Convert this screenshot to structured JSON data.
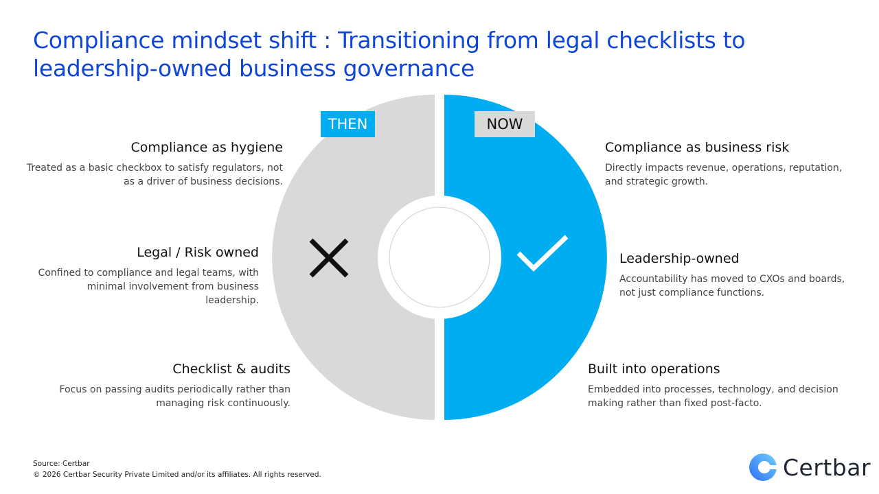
{
  "title": "Compliance mindset shift : Transitioning from legal checklists to leadership-owned business governance",
  "then_label": "THEN",
  "now_label": "NOW",
  "then_items": [
    {
      "heading": "Compliance as hygiene",
      "text": "Treated as a basic checkbox to satisfy regulators, not as a driver of business decisions."
    },
    {
      "heading": "Legal / Risk owned",
      "text": "Confined to compliance and legal teams, with minimal involvement from business leadership."
    },
    {
      "heading": "Checklist & audits",
      "text": "Focus on passing audits periodically rather than managing risk continuously."
    }
  ],
  "now_items": [
    {
      "heading": "Compliance as business risk",
      "text": "Directly impacts revenue, operations, reputation, and strategic growth."
    },
    {
      "heading": "Leadership-owned",
      "text": "Accountability has moved to CXOs and boards, not just compliance functions."
    },
    {
      "heading": "Built into operations",
      "text": "Embedded into processes, technology, and decision making rather than fixed post-facto."
    }
  ],
  "icons": {
    "then": "x-icon",
    "now": "check-icon"
  },
  "colors": {
    "accent": "#00adf0",
    "then": "#d9d9d9",
    "title": "#0f46d6"
  },
  "footer": {
    "source": "Source: Certbar",
    "copyright": "© 2026 Certbar Security Private Limited and/or its affiliates. All rights reserved."
  },
  "logo_text": "Certbar"
}
